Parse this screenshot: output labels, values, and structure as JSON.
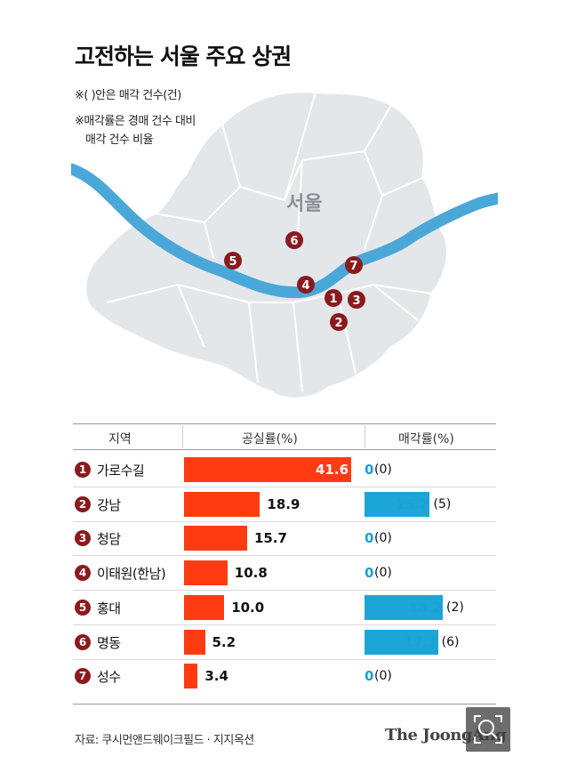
{
  "title": "고전하는 서울 주요 상권",
  "notes": [
    "※(  )안은 매각 건수(건)",
    "※매각률은 경매 건수 대비",
    "매각 건수 비율"
  ],
  "map": {
    "city_label": "서울"
  },
  "table": {
    "col_region": "지역",
    "col_vacancy": "공실률(%)",
    "col_sale": "매각률(%)"
  },
  "chart_data": {
    "type": "bar",
    "categories": [
      "가로수길",
      "강남",
      "청담",
      "이태원(한남)",
      "홍대",
      "명동",
      "성수"
    ],
    "series": [
      {
        "name": "공실률(%)",
        "values": [
          41.6,
          18.9,
          15.7,
          10.8,
          10.0,
          5.2,
          3.4
        ],
        "labels": [
          "41.6",
          "18.9",
          "15.7",
          "10.8",
          "10.0",
          "5.2",
          "3.4"
        ]
      },
      {
        "name": "매각률(%)",
        "values": [
          0,
          15.2,
          0,
          0,
          18.2,
          17.1,
          0
        ],
        "labels": [
          "0",
          "15.2",
          "0",
          "0",
          "18.2",
          "17.1",
          "0"
        ],
        "counts": [
          "(0)",
          "(5)",
          "(0)",
          "(0)",
          "(2)",
          "(6)",
          "(0)"
        ]
      }
    ],
    "colors": {
      "vacancy": "#ff3b12",
      "sale": "#1ba6d7",
      "badge": "#8b1a1f"
    }
  },
  "rows": [
    {
      "num": "1",
      "name": "가로수길"
    },
    {
      "num": "2",
      "name": "강남"
    },
    {
      "num": "3",
      "name": "청담"
    },
    {
      "num": "4",
      "name": "이태원(한남)"
    },
    {
      "num": "5",
      "name": "홍대"
    },
    {
      "num": "6",
      "name": "명동"
    },
    {
      "num": "7",
      "name": "성수"
    }
  ],
  "source": "자료: 쿠시먼앤드웨이크필드 · 지지옥션",
  "brand": "The JoongAng",
  "icons": {
    "zoom": "zoom-icon"
  }
}
